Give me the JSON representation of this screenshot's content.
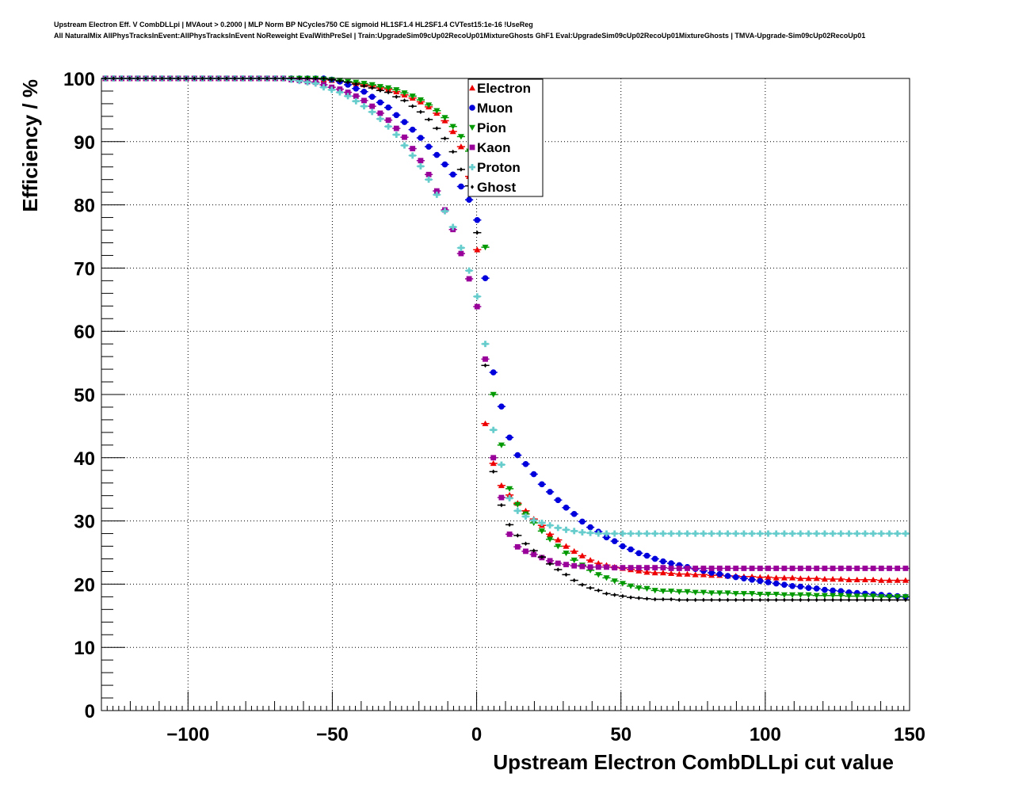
{
  "chart_data": {
    "type": "scatter",
    "title_lines": [
      "Upstream Electron Eff. V CombDLLpi | MVAout > 0.2000 | MLP Norm BP NCycles750 CE sigmoid HL1SF1.4 HL2SF1.4 CVTest15:1e-16 !UseReg",
      "All NaturalMix AllPhysTracksInEvent:AllPhysTracksInEvent NoReweight EvalWithPreSel | Train:UpgradeSim09cUp02RecoUp01MixtureGhosts GhF1 Eval:UpgradeSim09cUp02RecoUp01MixtureGhosts | TMVA-Upgrade-Sim09cUp02RecoUp01"
    ],
    "xlabel": "Upstream Electron CombDLLpi cut value",
    "ylabel": "Efficiency / %",
    "xlim": [
      -130,
      150
    ],
    "ylim": [
      0,
      100
    ],
    "xticks": [
      -100,
      -50,
      0,
      50,
      100,
      150
    ],
    "xtick_labels": [
      "−100",
      "−50",
      "0",
      "50",
      "100",
      "150"
    ],
    "yticks": [
      0,
      10,
      20,
      30,
      40,
      50,
      60,
      70,
      80,
      90,
      100
    ],
    "ytick_labels": [
      "0",
      "10",
      "20",
      "30",
      "40",
      "50",
      "60",
      "70",
      "80",
      "90",
      "100"
    ],
    "grid": true,
    "legend_position": "top-center",
    "x_bins": {
      "first_center": -128.6,
      "width": 2.8,
      "count": 100
    },
    "series": [
      {
        "name": "Electron",
        "color": "#ee0000",
        "marker": "triangle-up",
        "values": [
          100,
          100,
          100,
          100,
          100,
          100,
          100,
          100,
          100,
          100,
          100,
          100,
          100,
          100,
          100,
          100,
          100,
          100,
          100,
          100,
          100,
          100,
          100,
          100,
          100,
          100,
          99.9,
          99.8,
          99.7,
          99.6,
          99.4,
          99.2,
          99.0,
          98.8,
          98.5,
          98.3,
          97.9,
          97.4,
          96.9,
          96.3,
          95.5,
          94.5,
          93.3,
          91.6,
          89.2,
          84.5,
          72.9,
          45.4,
          39.1,
          35.6,
          34.1,
          32.8,
          31.6,
          30.3,
          29.3,
          27.9,
          27.0,
          26.0,
          25.2,
          24.5,
          23.8,
          23.3,
          23.0,
          22.7,
          22.5,
          22.3,
          22.1,
          21.9,
          21.8,
          21.8,
          21.7,
          21.6,
          21.6,
          21.5,
          21.5,
          21.4,
          21.4,
          21.3,
          21.3,
          21.2,
          21.2,
          21.1,
          21.1,
          21.0,
          21.0,
          21.0,
          20.9,
          20.9,
          20.9,
          20.8,
          20.8,
          20.8,
          20.7,
          20.7,
          20.7,
          20.7,
          20.6,
          20.6,
          20.6,
          20.6
        ]
      },
      {
        "name": "Muon",
        "color": "#0000dd",
        "marker": "circle",
        "values": [
          100,
          100,
          100,
          100,
          100,
          100,
          100,
          100,
          100,
          100,
          100,
          100,
          100,
          100,
          100,
          100,
          100,
          100,
          100,
          100,
          100,
          100,
          100,
          100,
          100,
          100,
          100,
          100,
          99.8,
          99.5,
          99.0,
          98.4,
          97.9,
          97.1,
          96.2,
          95.4,
          94.2,
          93.1,
          91.9,
          90.6,
          89.2,
          87.9,
          86.4,
          84.8,
          82.9,
          80.8,
          77.6,
          68.4,
          53.5,
          48.1,
          43.2,
          40.4,
          39.0,
          37.4,
          35.8,
          34.6,
          33.3,
          32.1,
          31.1,
          29.9,
          29.0,
          28.3,
          27.4,
          26.8,
          26.0,
          25.5,
          24.9,
          24.5,
          24.0,
          23.6,
          23.3,
          23.0,
          22.7,
          22.4,
          22.1,
          21.8,
          21.6,
          21.3,
          21.1,
          20.9,
          20.7,
          20.5,
          20.3,
          20.1,
          19.9,
          19.7,
          19.6,
          19.4,
          19.3,
          19.1,
          19.0,
          18.9,
          18.7,
          18.6,
          18.5,
          18.4,
          18.3,
          18.2,
          18.1,
          18.0
        ]
      },
      {
        "name": "Pion",
        "color": "#009900",
        "marker": "triangle-down",
        "values": [
          100,
          100,
          100,
          100,
          100,
          100,
          100,
          100,
          100,
          100,
          100,
          100,
          100,
          100,
          100,
          100,
          100,
          100,
          100,
          100,
          100,
          100,
          100,
          100,
          100,
          100,
          100,
          99.9,
          99.8,
          99.7,
          99.5,
          99.4,
          99.2,
          99.0,
          98.7,
          98.5,
          98.2,
          97.7,
          97.2,
          96.6,
          95.8,
          94.9,
          93.8,
          92.4,
          90.8,
          88.5,
          83.0,
          73.3,
          50.0,
          42.0,
          35.1,
          32.6,
          31.1,
          29.7,
          28.4,
          27.1,
          26.0,
          24.9,
          23.8,
          23.0,
          22.2,
          21.5,
          21.0,
          20.5,
          20.1,
          19.7,
          19.4,
          19.3,
          19.0,
          18.9,
          18.9,
          18.8,
          18.8,
          18.7,
          18.7,
          18.6,
          18.6,
          18.6,
          18.5,
          18.5,
          18.5,
          18.4,
          18.4,
          18.4,
          18.3,
          18.3,
          18.3,
          18.3,
          18.2,
          18.2,
          18.2,
          18.2,
          18.1,
          18.1,
          18.1,
          18.1,
          18.0,
          18.0,
          18.0,
          18.0
        ]
      },
      {
        "name": "Kaon",
        "color": "#990099",
        "marker": "square",
        "values": [
          100,
          100,
          100,
          100,
          100,
          100,
          100,
          100,
          100,
          100,
          100,
          100,
          100,
          100,
          100,
          100,
          100,
          100,
          100,
          100,
          100,
          100,
          100,
          99.8,
          99.7,
          99.5,
          99.4,
          99.0,
          98.6,
          98.3,
          97.8,
          97.2,
          96.5,
          95.6,
          94.5,
          93.4,
          92.1,
          90.7,
          88.9,
          87.0,
          84.8,
          82.2,
          79.2,
          76.1,
          72.3,
          68.3,
          63.9,
          55.6,
          40.0,
          33.7,
          27.9,
          25.9,
          25.2,
          24.7,
          24.2,
          23.7,
          23.3,
          23.1,
          22.9,
          22.8,
          22.7,
          22.7,
          22.7,
          22.6,
          22.6,
          22.6,
          22.6,
          22.6,
          22.6,
          22.6,
          22.5,
          22.5,
          22.5,
          22.5,
          22.5,
          22.5,
          22.5,
          22.5,
          22.5,
          22.5,
          22.5,
          22.5,
          22.5,
          22.5,
          22.5,
          22.5,
          22.5,
          22.5,
          22.5,
          22.5,
          22.5,
          22.5,
          22.5,
          22.5,
          22.5,
          22.5,
          22.5,
          22.5,
          22.5,
          22.5
        ]
      },
      {
        "name": "Proton",
        "color": "#66cccc",
        "marker": "cross",
        "values": [
          100,
          100,
          100,
          100,
          100,
          100,
          100,
          100,
          100,
          100,
          100,
          100,
          100,
          100,
          100,
          100,
          100,
          100,
          100,
          100,
          100,
          100,
          100,
          99.8,
          99.6,
          99.4,
          99.2,
          98.6,
          98.2,
          97.8,
          97.2,
          96.4,
          95.6,
          94.7,
          93.6,
          92.4,
          91.1,
          89.4,
          87.8,
          86.1,
          84.0,
          81.6,
          79.0,
          76.5,
          73.2,
          69.6,
          65.5,
          58.0,
          44.4,
          38.9,
          33.6,
          31.6,
          30.7,
          30.1,
          29.7,
          29.3,
          28.9,
          28.6,
          28.4,
          28.2,
          28.1,
          28.0,
          28.0,
          28.0,
          28.0,
          28.0,
          28.0,
          28.0,
          28.0,
          28.0,
          28.0,
          28.0,
          28.0,
          28.0,
          28.0,
          28.0,
          28.0,
          28.0,
          28.0,
          28.0,
          28.0,
          28.0,
          28.0,
          28.0,
          28.0,
          28.0,
          28.0,
          28.0,
          28.0,
          28.0,
          28.0,
          28.0,
          28.0,
          28.0,
          28.0,
          28.0,
          28.0,
          28.0,
          28.0,
          28.0
        ]
      },
      {
        "name": "Ghost",
        "color": "#000000",
        "marker": "diamond",
        "values": [
          100,
          100,
          100,
          100,
          100,
          100,
          100,
          100,
          100,
          100,
          100,
          100,
          100,
          100,
          100,
          100,
          100,
          100,
          100,
          100,
          100,
          100,
          100,
          100,
          100,
          100,
          100,
          100,
          99.8,
          99.6,
          99.4,
          99.1,
          98.8,
          98.5,
          98.1,
          97.8,
          97.1,
          96.5,
          95.6,
          94.7,
          93.5,
          92.1,
          90.5,
          88.4,
          85.6,
          83.0,
          75.6,
          54.6,
          37.8,
          32.5,
          29.4,
          27.7,
          26.4,
          25.3,
          24.3,
          23.2,
          22.3,
          21.5,
          20.6,
          19.9,
          19.4,
          19.0,
          18.5,
          18.3,
          18.1,
          17.9,
          17.8,
          17.7,
          17.6,
          17.6,
          17.6,
          17.5,
          17.5,
          17.5,
          17.5,
          17.5,
          17.5,
          17.5,
          17.5,
          17.5,
          17.5,
          17.5,
          17.5,
          17.5,
          17.5,
          17.5,
          17.5,
          17.5,
          17.5,
          17.5,
          17.5,
          17.5,
          17.5,
          17.5,
          17.5,
          17.5,
          17.5,
          17.5,
          17.5,
          17.5
        ]
      }
    ]
  }
}
